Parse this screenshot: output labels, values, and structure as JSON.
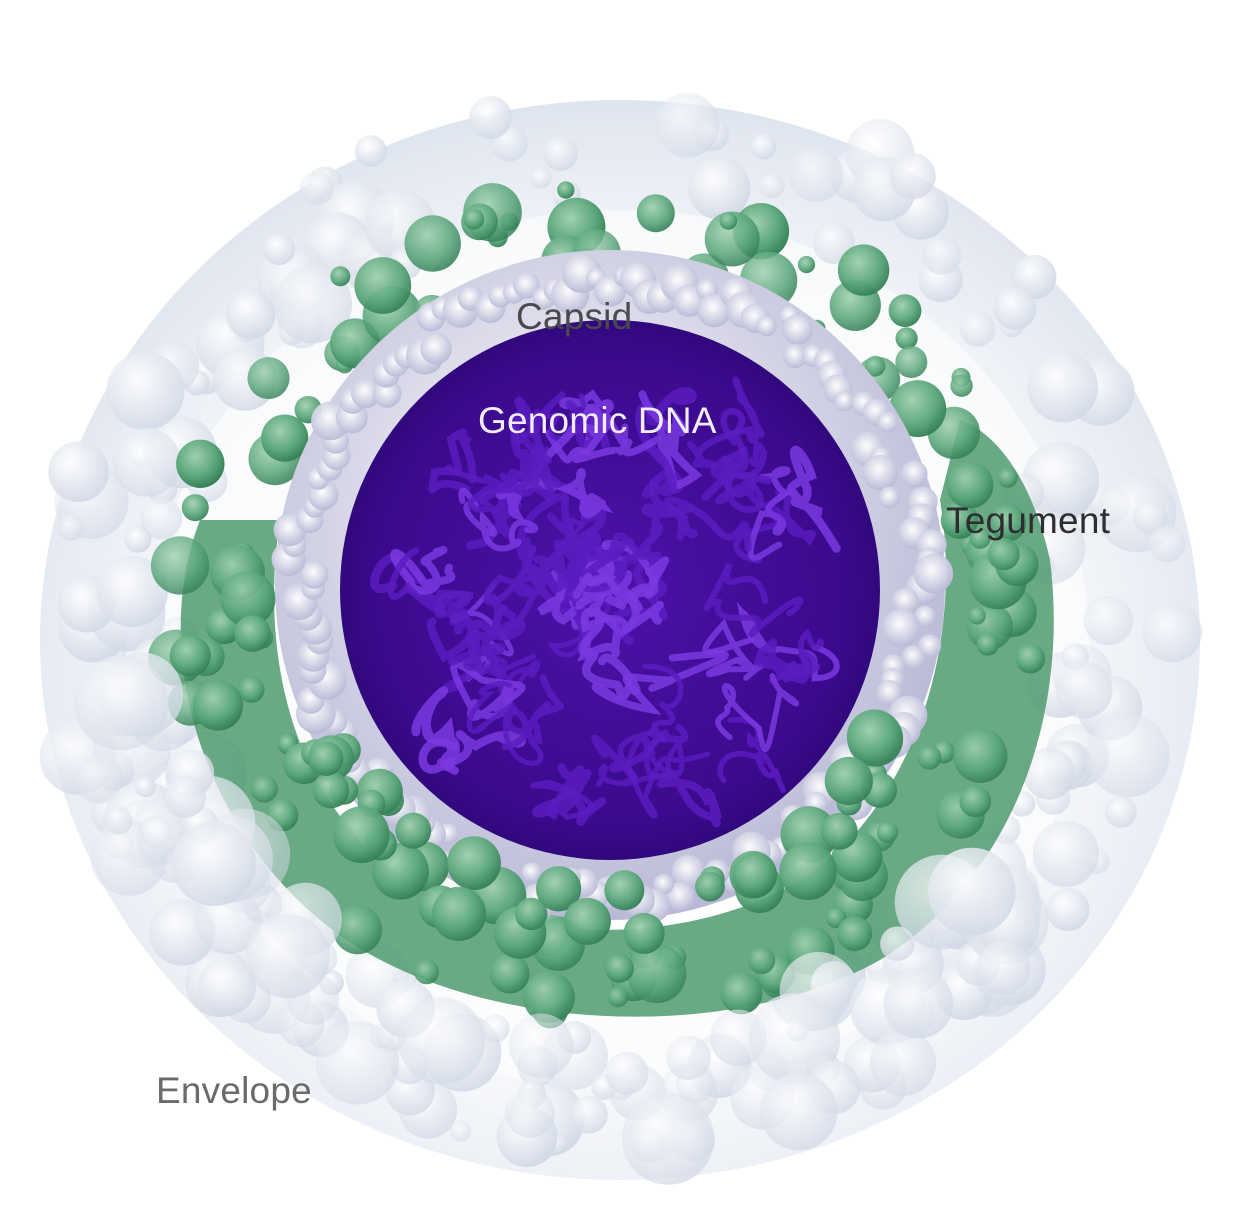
{
  "labels": {
    "capsid": "Capsid",
    "genomic_dna": "Genomic DNA",
    "tegument": "Tegument",
    "envelope": "Envelope"
  },
  "colors": {
    "background": "#ffffff",
    "envelope": "#e3e8f0",
    "tegument": "#4f9a6f",
    "capsid": "#dcdcf0",
    "genomic_dna": "#3a0a8c",
    "dna_strands": "#6a2ad0"
  }
}
